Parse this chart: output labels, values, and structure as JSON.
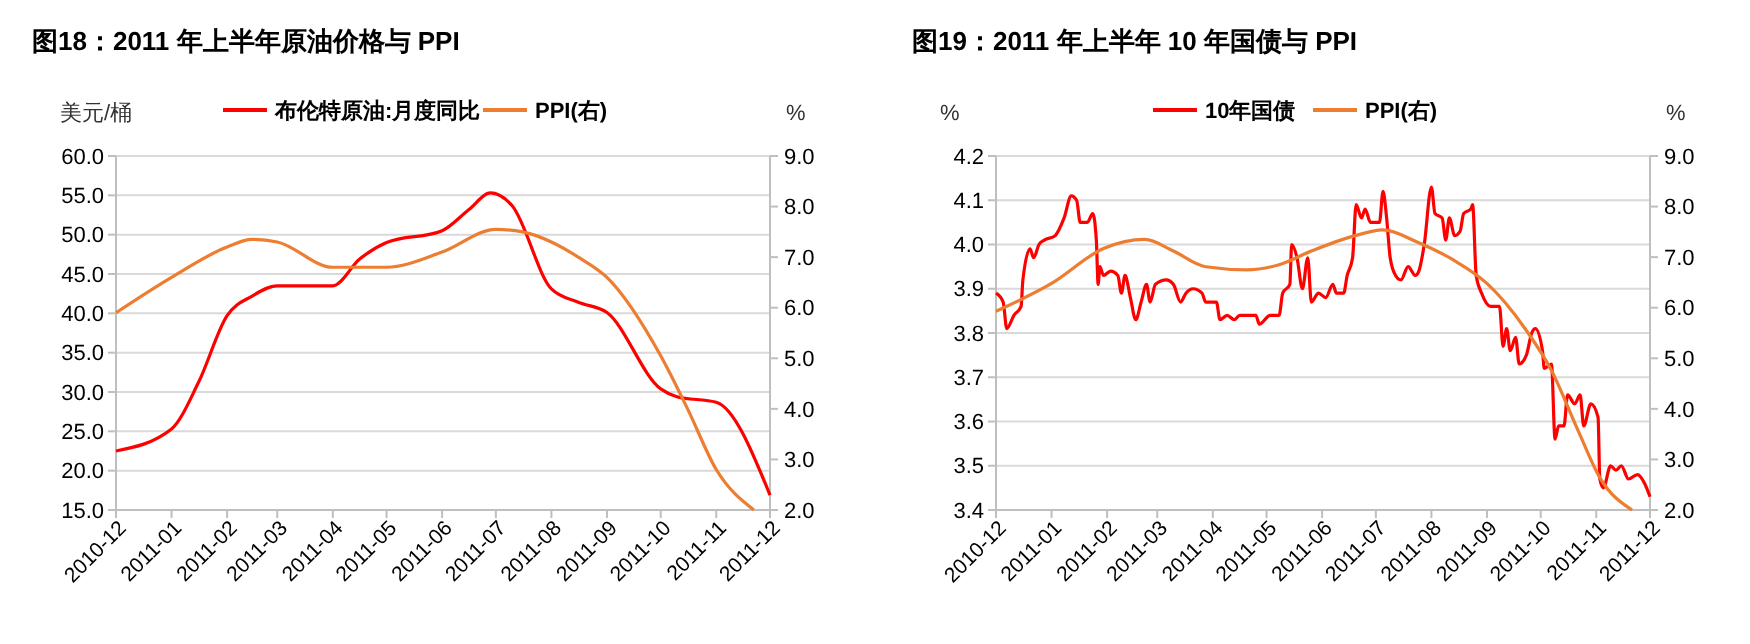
{
  "chart_data": [
    {
      "type": "line",
      "title": "图18：2011 年上半年原油价格与 PPI",
      "ylabel": "美元/桶",
      "y2label": "%",
      "legend": "top",
      "grid": "y",
      "xlim": [
        "2010-12",
        "2011-12"
      ],
      "xticks": [
        "2010-12",
        "2011-01",
        "2011-02",
        "2011-03",
        "2011-04",
        "2011-05",
        "2011-06",
        "2011-07",
        "2011-08",
        "2011-09",
        "2011-10",
        "2011-11",
        "2011-12"
      ],
      "ylim": [
        15,
        60
      ],
      "yticks": [
        {
          "value": 15,
          "label": "15.0"
        },
        {
          "value": 20,
          "label": "20.0"
        },
        {
          "value": 25,
          "label": "25.0"
        },
        {
          "value": 30,
          "label": "30.0"
        },
        {
          "value": 35,
          "label": "35.0"
        },
        {
          "value": 40,
          "label": "40.0"
        },
        {
          "value": 45,
          "label": "45.0"
        },
        {
          "value": 50,
          "label": "50.0"
        },
        {
          "value": 55,
          "label": "55.0"
        },
        {
          "value": 60,
          "label": "60.0"
        }
      ],
      "y2lim": [
        2,
        9
      ],
      "y2ticks": [
        {
          "value": 2,
          "label": "2.0"
        },
        {
          "value": 3,
          "label": "3.0"
        },
        {
          "value": 4,
          "label": "4.0"
        },
        {
          "value": 5,
          "label": "5.0"
        },
        {
          "value": 6,
          "label": "6.0"
        },
        {
          "value": 7,
          "label": "7.0"
        },
        {
          "value": 8,
          "label": "8.0"
        },
        {
          "value": 9,
          "label": "9.0"
        }
      ],
      "series": [
        {
          "name": "布伦特原油:月度同比",
          "color": "#ff0000",
          "x": [
            "2010-12-01",
            "2011-01-01",
            "2011-01-16",
            "2011-02-01",
            "2011-02-15",
            "2011-03-01",
            "2011-04-01",
            "2011-04-16",
            "2011-05-01",
            "2011-06-01",
            "2011-06-16",
            "2011-06-28",
            "2011-07-10",
            "2011-08-01",
            "2011-08-16",
            "2011-09-01",
            "2011-10-01",
            "2011-10-10",
            "2011-11-01",
            "2011-12-01"
          ],
          "values": [
            22.5,
            25.3,
            31.2,
            39.7,
            42.2,
            43.5,
            43.5,
            46.9,
            49.0,
            50.5,
            53.2,
            55.3,
            53.7,
            43.1,
            41.4,
            40.1,
            30.4,
            29.4,
            28.7,
            16.9
          ]
        },
        {
          "name": "PPI(右)",
          "color": "#ed7d31",
          "axis": "y2",
          "x": [
            "2010-12-01",
            "2011-01-01",
            "2011-02-01",
            "2011-02-15",
            "2011-03-01",
            "2011-04-01",
            "2011-05-01",
            "2011-06-01",
            "2011-07-01",
            "2011-07-16",
            "2011-08-01",
            "2011-08-16",
            "2011-09-01",
            "2011-10-01",
            "2011-10-16",
            "2011-11-01",
            "2011-11-22"
          ],
          "values": [
            5.9,
            6.6,
            7.2,
            7.35,
            7.3,
            6.8,
            6.8,
            7.1,
            7.55,
            7.5,
            7.3,
            7.0,
            6.6,
            5.05,
            4.0,
            2.8,
            2.0
          ]
        }
      ]
    },
    {
      "type": "line",
      "title": "图19：2011 年上半年 10 年国债与 PPI",
      "ylabel": "%",
      "y2label": "%",
      "legend": "top",
      "grid": "y",
      "xlim": [
        "2010-12",
        "2011-12"
      ],
      "xticks": [
        "2010-12",
        "2011-01",
        "2011-02",
        "2011-03",
        "2011-04",
        "2011-05",
        "2011-06",
        "2011-07",
        "2011-08",
        "2011-09",
        "2011-10",
        "2011-11",
        "2011-12"
      ],
      "ylim": [
        3.4,
        4.2
      ],
      "yticks": [
        3.4,
        3.5,
        3.6,
        3.7,
        3.8,
        3.9,
        {
          "value": 4,
          "label": "4.0"
        },
        4.1,
        4.2
      ],
      "y2lim": [
        2,
        9
      ],
      "y2ticks": [
        {
          "value": 2,
          "label": "2.0"
        },
        {
          "value": 3,
          "label": "3.0"
        },
        {
          "value": 4,
          "label": "4.0"
        },
        {
          "value": 5,
          "label": "5.0"
        },
        {
          "value": 6,
          "label": "6.0"
        },
        {
          "value": 7,
          "label": "7.0"
        },
        {
          "value": 8,
          "label": "8.0"
        },
        {
          "value": 9,
          "label": "9.0"
        }
      ],
      "series": [
        {
          "name": "10年国债",
          "color": "#ff0000",
          "x": [
            "2010-12-01",
            "2010-12-05",
            "2010-12-07",
            "2010-12-11",
            "2010-12-15",
            "2010-12-16",
            "2010-12-20",
            "2010-12-22",
            "2010-12-25",
            "2010-12-28",
            "2011-01-03",
            "2011-01-08",
            "2011-01-12",
            "2011-01-15",
            "2011-01-17",
            "2011-01-21",
            "2011-01-24",
            "2011-01-26",
            "2011-01-27",
            "2011-01-28",
            "2011-01-30",
            "2011-02-03",
            "2011-02-07",
            "2011-02-09",
            "2011-02-11",
            "2011-02-14",
            "2011-02-17",
            "2011-02-20",
            "2011-02-23",
            "2011-02-25",
            "2011-02-28",
            "2011-03-06",
            "2011-03-10",
            "2011-03-14",
            "2011-03-17",
            "2011-03-21",
            "2011-03-26",
            "2011-03-28",
            "2011-04-03",
            "2011-04-05",
            "2011-04-09",
            "2011-04-13",
            "2011-04-16",
            "2011-04-20",
            "2011-04-25",
            "2011-04-27",
            "2011-05-03",
            "2011-05-08",
            "2011-05-10",
            "2011-05-14",
            "2011-05-15",
            "2011-05-18",
            "2011-05-21",
            "2011-05-24",
            "2011-05-26",
            "2011-05-30",
            "2011-06-03",
            "2011-06-07",
            "2011-06-09",
            "2011-06-13",
            "2011-06-15",
            "2011-06-18",
            "2011-06-20",
            "2011-06-23",
            "2011-06-25",
            "2011-06-28",
            "2011-07-03",
            "2011-07-05",
            "2011-07-07",
            "2011-07-09",
            "2011-07-12",
            "2011-07-15",
            "2011-07-19",
            "2011-07-23",
            "2011-07-25",
            "2011-07-28",
            "2011-08-01",
            "2011-08-03",
            "2011-08-07",
            "2011-08-09",
            "2011-08-11",
            "2011-08-14",
            "2011-08-17",
            "2011-08-19",
            "2011-08-23",
            "2011-08-24",
            "2011-08-26",
            "2011-08-29",
            "2011-09-03",
            "2011-09-08",
            "2011-09-10",
            "2011-09-12",
            "2011-09-14",
            "2011-09-17",
            "2011-09-19",
            "2011-09-23",
            "2011-09-26",
            "2011-09-28",
            "2011-10-02",
            "2011-10-03",
            "2011-10-07",
            "2011-10-09",
            "2011-10-11",
            "2011-10-14",
            "2011-10-16",
            "2011-10-20",
            "2011-10-23",
            "2011-10-25",
            "2011-10-29",
            "2011-11-02",
            "2011-11-03",
            "2011-11-05",
            "2011-11-09",
            "2011-11-12",
            "2011-11-15",
            "2011-11-19",
            "2011-11-24",
            "2011-11-28",
            "2011-12-01"
          ],
          "values": [
            3.89,
            3.87,
            3.81,
            3.84,
            3.86,
            3.92,
            3.99,
            3.97,
            4.0,
            4.01,
            4.02,
            4.06,
            4.11,
            4.1,
            4.05,
            4.05,
            4.07,
            4.01,
            3.91,
            3.95,
            3.93,
            3.94,
            3.93,
            3.89,
            3.93,
            3.88,
            3.83,
            3.87,
            3.91,
            3.87,
            3.91,
            3.92,
            3.91,
            3.87,
            3.89,
            3.9,
            3.89,
            3.87,
            3.87,
            3.83,
            3.84,
            3.83,
            3.84,
            3.84,
            3.84,
            3.82,
            3.84,
            3.84,
            3.89,
            3.91,
            4.0,
            3.97,
            3.9,
            3.97,
            3.87,
            3.89,
            3.88,
            3.91,
            3.89,
            3.89,
            3.93,
            3.97,
            4.09,
            4.06,
            4.08,
            4.05,
            4.05,
            4.12,
            4.06,
            3.97,
            3.93,
            3.92,
            3.95,
            3.93,
            3.94,
            4.0,
            4.13,
            4.07,
            4.06,
            4.01,
            4.06,
            4.02,
            4.03,
            4.07,
            4.08,
            4.09,
            3.93,
            3.89,
            3.86,
            3.86,
            3.77,
            3.81,
            3.76,
            3.79,
            3.73,
            3.75,
            3.8,
            3.81,
            3.76,
            3.72,
            3.73,
            3.56,
            3.59,
            3.59,
            3.66,
            3.64,
            3.66,
            3.59,
            3.64,
            3.61,
            3.47,
            3.45,
            3.5,
            3.49,
            3.5,
            3.47,
            3.48,
            3.46,
            3.43
          ]
        },
        {
          "name": "PPI(右)",
          "color": "#ed7d31",
          "axis": "y2",
          "x": [
            "2010-12-01",
            "2011-01-01",
            "2011-01-30",
            "2011-02-22",
            "2011-03-10",
            "2011-03-28",
            "2011-04-20",
            "2011-05-08",
            "2011-05-26",
            "2011-06-18",
            "2011-07-05",
            "2011-07-24",
            "2011-08-13",
            "2011-09-01",
            "2011-09-23",
            "2011-10-07",
            "2011-10-22",
            "2011-11-03",
            "2011-11-21"
          ],
          "values": [
            5.93,
            6.48,
            7.17,
            7.35,
            7.12,
            6.81,
            6.75,
            6.85,
            7.12,
            7.41,
            7.54,
            7.3,
            6.95,
            6.48,
            5.55,
            4.76,
            3.56,
            2.64,
            2.0
          ]
        }
      ]
    }
  ]
}
